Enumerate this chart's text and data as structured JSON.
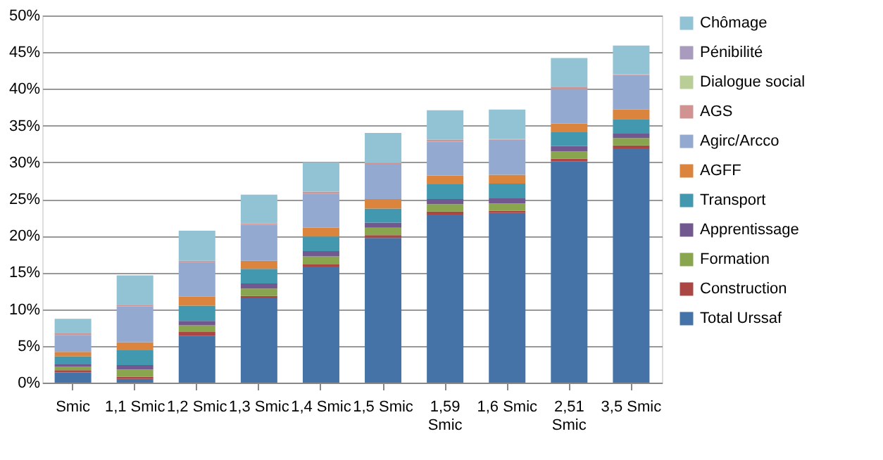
{
  "chart_data": {
    "type": "bar",
    "stacked": true,
    "categories": [
      "Smic",
      "1,1 Smic",
      "1,2 Smic",
      "1,3 Smic",
      "1,4 Smic",
      "1,5 Smic",
      "1,59 Smic",
      "1,6 Smic",
      "2,51 Smic",
      "3,5 Smic"
    ],
    "series": [
      {
        "name": "Total Urssaf",
        "color": "#4573a7",
        "values": [
          1.4,
          0.5,
          6.4,
          11.5,
          15.8,
          19.7,
          22.9,
          23.1,
          30.1,
          31.9
        ]
      },
      {
        "name": "Construction",
        "color": "#aa4643",
        "values": [
          0.3,
          0.3,
          0.5,
          0.3,
          0.3,
          0.4,
          0.4,
          0.3,
          0.4,
          0.4
        ]
      },
      {
        "name": "Formation",
        "color": "#89a54e",
        "values": [
          0.5,
          1.0,
          0.9,
          1.0,
          1.1,
          1.0,
          1.0,
          1.0,
          1.0,
          1.0
        ]
      },
      {
        "name": "Apprentissage",
        "color": "#71588f",
        "values": [
          0.3,
          0.6,
          0.6,
          0.7,
          0.7,
          0.7,
          0.7,
          0.7,
          0.7,
          0.6
        ]
      },
      {
        "name": "Transport",
        "color": "#4198af",
        "values": [
          1.1,
          2.0,
          2.1,
          2.0,
          2.0,
          1.9,
          2.0,
          2.0,
          1.9,
          2.0
        ]
      },
      {
        "name": "AGFF",
        "color": "#db843d",
        "values": [
          0.6,
          1.1,
          1.2,
          1.1,
          1.2,
          1.3,
          1.2,
          1.2,
          1.2,
          1.3
        ]
      },
      {
        "name": "Agirc/Arcco",
        "color": "#93a9cf",
        "values": [
          2.3,
          4.9,
          4.7,
          4.9,
          4.6,
          4.7,
          4.6,
          4.8,
          4.7,
          4.7
        ]
      },
      {
        "name": "AGS",
        "color": "#d19392",
        "values": [
          0.2,
          0.2,
          0.2,
          0.2,
          0.3,
          0.2,
          0.3,
          0.1,
          0.3,
          0.1
        ]
      },
      {
        "name": "Dialogue social",
        "color": "#b9cd96",
        "values": [
          0,
          0,
          0,
          0,
          0,
          0,
          0,
          0,
          0,
          0
        ]
      },
      {
        "name": "Pénibilité",
        "color": "#a99bbd",
        "values": [
          0,
          0,
          0,
          0,
          0,
          0,
          0,
          0,
          0,
          0
        ]
      },
      {
        "name": "Chômage",
        "color": "#92c3d5",
        "values": [
          2.0,
          4.0,
          4.1,
          3.9,
          4.0,
          4.1,
          4.0,
          4.0,
          3.9,
          3.9
        ]
      }
    ],
    "ylim": [
      0,
      50
    ],
    "yticks": [
      {
        "value": 0,
        "label": "0%"
      },
      {
        "value": 5,
        "label": "5%"
      },
      {
        "value": 10,
        "label": "10%"
      },
      {
        "value": 15,
        "label": "15%"
      },
      {
        "value": 20,
        "label": "20%"
      },
      {
        "value": 25,
        "label": "25%"
      },
      {
        "value": 30,
        "label": "30%"
      },
      {
        "value": 35,
        "label": "35%"
      },
      {
        "value": 40,
        "label": "40%"
      },
      {
        "value": 45,
        "label": "45%"
      },
      {
        "value": 50,
        "label": "50%"
      }
    ],
    "grid": "y",
    "legend": "right"
  }
}
